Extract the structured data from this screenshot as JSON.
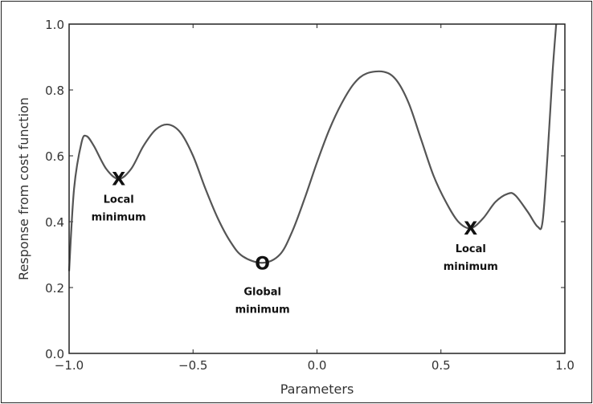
{
  "chart_data": {
    "type": "line",
    "title": "",
    "xlabel": "Parameters",
    "ylabel": "Response from cost function",
    "xlim": [
      -1.0,
      1.0
    ],
    "ylim": [
      0.0,
      1.0
    ],
    "xticks": [
      "-1.0",
      "-0.5",
      "0.0",
      "0.5",
      "1.0"
    ],
    "yticks": [
      "0.0",
      "0.2",
      "0.4",
      "0.6",
      "0.8",
      "1.0"
    ],
    "grid": false,
    "line_color": "#555555",
    "series": [
      {
        "x": [
          -1.0,
          -0.98,
          -0.95,
          -0.93,
          -0.9,
          -0.85,
          -0.8,
          -0.75,
          -0.7,
          -0.65,
          -0.6,
          -0.55,
          -0.5,
          -0.45,
          -0.4,
          -0.35,
          -0.3,
          -0.22,
          -0.15,
          -0.1,
          -0.05,
          0.0,
          0.05,
          0.1,
          0.15,
          0.2,
          0.27,
          0.32,
          0.37,
          0.42,
          0.47,
          0.52,
          0.57,
          0.62,
          0.67,
          0.72,
          0.77,
          0.8,
          0.85,
          0.89,
          0.91,
          0.93,
          0.95,
          0.965
        ],
        "y": [
          0.25,
          0.5,
          0.64,
          0.66,
          0.63,
          0.56,
          0.53,
          0.56,
          0.63,
          0.68,
          0.695,
          0.67,
          0.6,
          0.5,
          0.41,
          0.34,
          0.295,
          0.275,
          0.3,
          0.37,
          0.47,
          0.58,
          0.68,
          0.76,
          0.82,
          0.85,
          0.855,
          0.83,
          0.76,
          0.65,
          0.54,
          0.46,
          0.4,
          0.38,
          0.41,
          0.46,
          0.485,
          0.48,
          0.43,
          0.385,
          0.4,
          0.6,
          0.85,
          1.0
        ]
      }
    ],
    "annotations": [
      {
        "marker": "X",
        "x": -0.8,
        "y": 0.53,
        "line1": "Local",
        "line2": "minimum"
      },
      {
        "marker": "O",
        "x": -0.22,
        "y": 0.275,
        "line1": "Global",
        "line2": "minimum"
      },
      {
        "marker": "X",
        "x": 0.62,
        "y": 0.38,
        "line1": "Local",
        "line2": "minimum"
      }
    ]
  }
}
